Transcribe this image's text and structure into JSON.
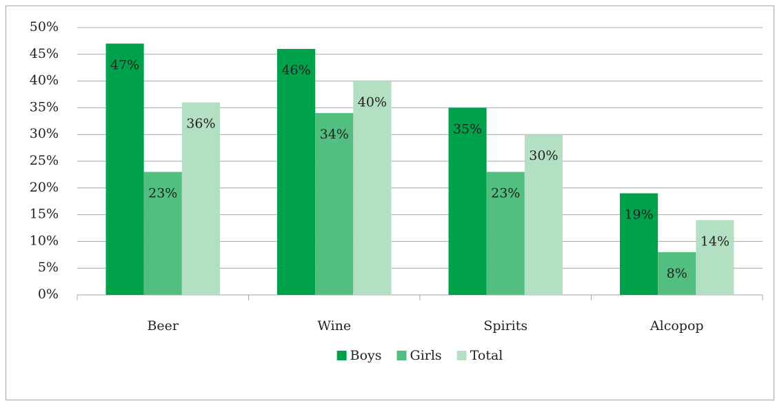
{
  "chart_data": {
    "type": "bar",
    "categories": [
      "Beer",
      "Wine",
      "Spirits",
      "Alcopop"
    ],
    "series": [
      {
        "name": "Boys",
        "color": "#00a14b",
        "values": [
          47,
          46,
          35,
          19
        ],
        "value_labels": [
          "47%",
          "46%",
          "35%",
          "19%"
        ]
      },
      {
        "name": "Girls",
        "color": "#52be80",
        "values": [
          23,
          34,
          23,
          8
        ],
        "value_labels": [
          "23%",
          "34%",
          "23%",
          "8%"
        ]
      },
      {
        "name": "Total",
        "color": "#b3dfc2",
        "values": [
          36,
          40,
          30,
          14
        ],
        "value_labels": [
          "36%",
          "40%",
          "30%",
          "14%"
        ]
      }
    ],
    "ylim": [
      0,
      50
    ],
    "yticks": [
      {
        "value": 0,
        "label": "0%"
      },
      {
        "value": 5,
        "label": "5%"
      },
      {
        "value": 10,
        "label": "10%"
      },
      {
        "value": 15,
        "label": "15%"
      },
      {
        "value": 20,
        "label": "20%"
      },
      {
        "value": 25,
        "label": "25%"
      },
      {
        "value": 30,
        "label": "30%"
      },
      {
        "value": 35,
        "label": "35%"
      },
      {
        "value": 40,
        "label": "40%"
      },
      {
        "value": 45,
        "label": "45%"
      },
      {
        "value": 50,
        "label": "50%"
      }
    ],
    "grid": true,
    "legend": "bottom"
  }
}
